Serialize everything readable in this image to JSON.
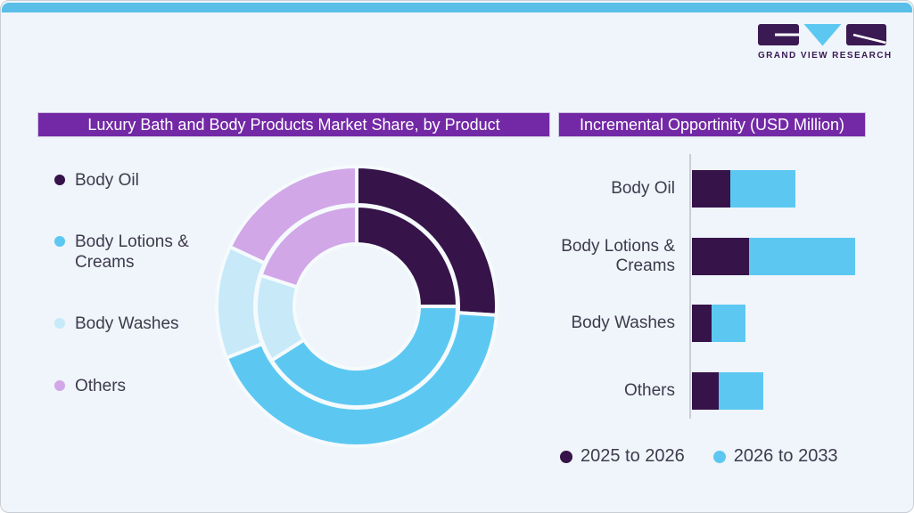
{
  "logo": {
    "brand": "GRAND VIEW RESEARCH"
  },
  "theme": {
    "background": "#EFF5FA",
    "top_bar": "#59BFE9",
    "header_bar": "#7329A6",
    "header_text": "#FFFFFF",
    "text": "#3E3A4D",
    "separator": "#F5FAFD",
    "axis_line": "#C9CED6",
    "logo_purple": "#3B1953",
    "logo_cyan": "#5CC8F2",
    "dark_purple": "#361349",
    "cyan": "#5CC8F2",
    "light_blue": "#C7E9F8",
    "lavender": "#D1A7E8"
  },
  "left_panel": {
    "title": "Luxury Bath and Body Products Market Share, by Product",
    "legend": [
      {
        "label": "Body Oil",
        "color": "#361349"
      },
      {
        "label": "Body Lotions & Creams",
        "color": "#5CC8F2"
      },
      {
        "label": "Body Washes",
        "color": "#C7E9F8"
      },
      {
        "label": "Others",
        "color": "#D1A7E8"
      }
    ]
  },
  "right_panel": {
    "title": "Incremental Opportinity (USD Million)"
  },
  "chart_data": [
    {
      "type": "pie",
      "variant": "double-ring-donut",
      "title": "Luxury Bath and Body Products Market Share, by Product",
      "categories": [
        "Body Oil",
        "Body Lotions & Creams",
        "Body Washes",
        "Others"
      ],
      "series": [
        {
          "name": "outer ring",
          "values": [
            26,
            43,
            13,
            18
          ]
        },
        {
          "name": "inner ring",
          "values": [
            25,
            41,
            14,
            20
          ]
        }
      ],
      "unit": "percent (estimated from arc angles; no data labels shown)",
      "colors": [
        "#361349",
        "#5CC8F2",
        "#C7E9F8",
        "#D1A7E8"
      ],
      "legend_position": "left",
      "start_angle_deg_clockwise_from_top": 0
    },
    {
      "type": "bar",
      "orientation": "horizontal",
      "stacked": true,
      "title": "Incremental Opportinity (USD Million)",
      "categories": [
        "Body Oil",
        "Body Lotions & Creams",
        "Body Washes",
        "Others"
      ],
      "series": [
        {
          "name": "2025 to 2026",
          "color": "#361349",
          "values": [
            43,
            64,
            22,
            30
          ]
        },
        {
          "name": "2026 to 2033",
          "color": "#5CC8F2",
          "values": [
            73,
            119,
            38,
            50
          ]
        }
      ],
      "unit": "relative length units (no numeric axis labels shown in source)",
      "legend_position": "bottom",
      "grid": false
    }
  ]
}
